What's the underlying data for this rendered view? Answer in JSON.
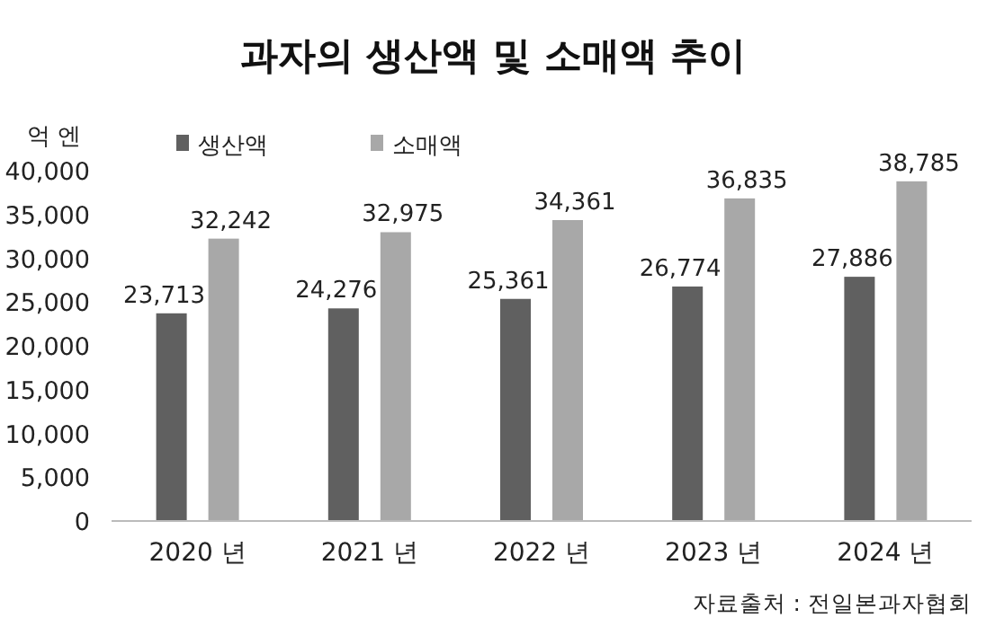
{
  "chart_data": {
    "type": "bar",
    "title": "과자의 생산액 및 소매액 추이",
    "ylabel": "억 엔",
    "categories": [
      "2020 년",
      "2021 년",
      "2022 년",
      "2023 년",
      "2024 년"
    ],
    "series": [
      {
        "name": "생산액",
        "color": "#606060",
        "values": [
          23713,
          24276,
          25361,
          26774,
          27886
        ],
        "value_labels": [
          "23,713",
          "24,276",
          "25,361",
          "26,774",
          "27,886"
        ]
      },
      {
        "name": "소매액",
        "color": "#a8a8a8",
        "values": [
          32242,
          32975,
          34361,
          36835,
          38785
        ],
        "value_labels": [
          "32,242",
          "32,975",
          "34,361",
          "36,835",
          "38,785"
        ]
      }
    ],
    "ylim": [
      0,
      40000
    ],
    "yticks": [
      {
        "value": 0,
        "label": "0"
      },
      {
        "value": 5000,
        "label": "5,000"
      },
      {
        "value": 10000,
        "label": "10,000"
      },
      {
        "value": 15000,
        "label": "15,000"
      },
      {
        "value": 20000,
        "label": "20,000"
      },
      {
        "value": 25000,
        "label": "25,000"
      },
      {
        "value": 30000,
        "label": "30,000"
      },
      {
        "value": 35000,
        "label": "35,000"
      },
      {
        "value": 40000,
        "label": "40,000"
      }
    ],
    "grid": false,
    "legend": "top",
    "annotations": [
      "자료출처 : 전일본과자협회"
    ]
  }
}
